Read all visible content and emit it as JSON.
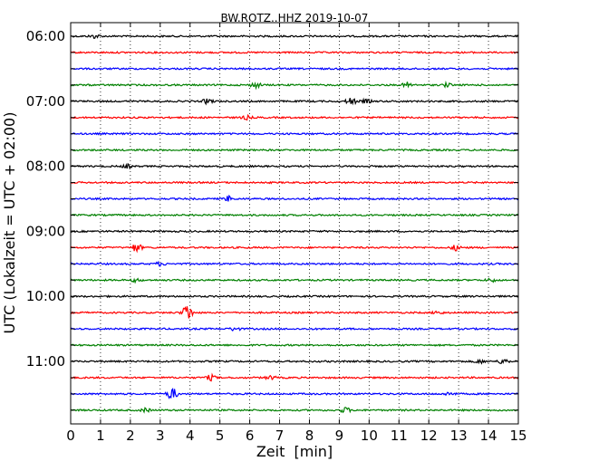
{
  "chart_data": {
    "type": "line",
    "title": "BW.ROTZ..HHZ 2019-10-07",
    "xlabel": "Zeit  [min]",
    "ylabel": "UTC (Lokalzeit = UTC + 02:00)",
    "xlim": [
      0,
      15
    ],
    "x_ticks": [
      "0",
      "1",
      "2",
      "3",
      "4",
      "5",
      "6",
      "7",
      "8",
      "9",
      "10",
      "11",
      "12",
      "13",
      "14",
      "15"
    ],
    "y_tick_labels": [
      "06:00",
      "07:00",
      "08:00",
      "09:00",
      "10:00",
      "11:00"
    ],
    "grid": "vertical dotted",
    "trace_colors": [
      "#000000",
      "#ff0000",
      "#0000ff",
      "#008000"
    ],
    "traces": [
      {
        "start": "06:00",
        "events": [
          [
            0.8,
            2
          ]
        ]
      },
      {
        "start": "06:15",
        "events": []
      },
      {
        "start": "06:30",
        "events": []
      },
      {
        "start": "06:45",
        "events": [
          [
            6.2,
            3
          ],
          [
            11.3,
            3
          ],
          [
            12.6,
            2
          ]
        ]
      },
      {
        "start": "07:00",
        "events": [
          [
            4.6,
            3
          ],
          [
            9.4,
            4
          ],
          [
            9.9,
            2
          ]
        ]
      },
      {
        "start": "07:15",
        "events": [
          [
            5.9,
            2
          ]
        ]
      },
      {
        "start": "07:30",
        "events": []
      },
      {
        "start": "07:45",
        "events": []
      },
      {
        "start": "08:00",
        "events": [
          [
            1.9,
            2
          ]
        ]
      },
      {
        "start": "08:15",
        "events": []
      },
      {
        "start": "08:30",
        "events": [
          [
            5.3,
            3
          ]
        ]
      },
      {
        "start": "08:45",
        "events": []
      },
      {
        "start": "09:00",
        "events": []
      },
      {
        "start": "09:15",
        "events": [
          [
            2.2,
            5
          ],
          [
            12.9,
            3
          ]
        ]
      },
      {
        "start": "09:30",
        "events": [
          [
            3.0,
            2
          ]
        ]
      },
      {
        "start": "09:45",
        "events": [
          [
            2.2,
            2
          ],
          [
            14.1,
            2
          ]
        ]
      },
      {
        "start": "10:00",
        "events": []
      },
      {
        "start": "10:15",
        "events": [
          [
            3.9,
            10
          ],
          [
            12.3,
            2
          ]
        ]
      },
      {
        "start": "10:30",
        "events": [
          [
            5.5,
            2
          ]
        ]
      },
      {
        "start": "10:45",
        "events": []
      },
      {
        "start": "11:00",
        "events": [
          [
            13.7,
            2
          ],
          [
            14.5,
            3
          ]
        ]
      },
      {
        "start": "11:15",
        "events": [
          [
            4.7,
            3
          ],
          [
            6.7,
            2
          ]
        ]
      },
      {
        "start": "11:30",
        "events": [
          [
            3.4,
            7
          ],
          [
            12.7,
            2
          ]
        ]
      },
      {
        "start": "11:45",
        "events": [
          [
            2.5,
            2
          ],
          [
            9.2,
            3
          ]
        ]
      }
    ]
  }
}
